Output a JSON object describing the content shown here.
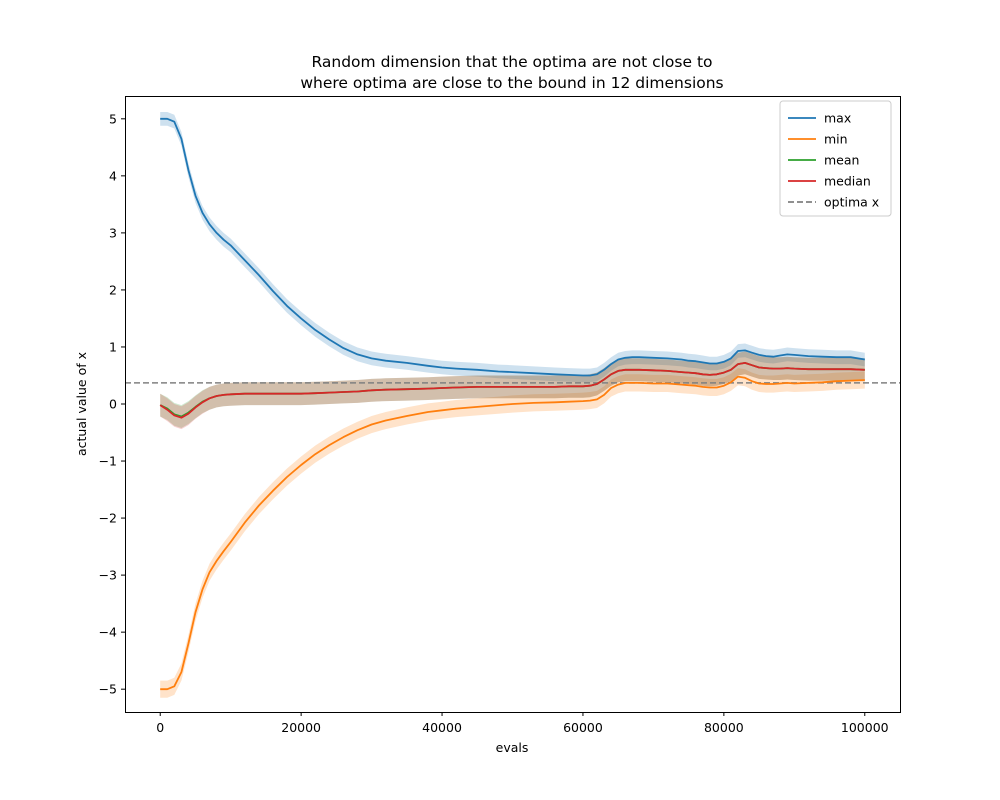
{
  "chart_data": {
    "type": "line",
    "title_lines": [
      "Random dimension that the optima are not close to",
      "where optima are close to the bound in 12 dimensions"
    ],
    "xlabel": "evals",
    "ylabel": "actual value of x",
    "xlim": [
      -5000,
      105000
    ],
    "ylim": [
      -5.4,
      5.4
    ],
    "xticks": [
      0,
      20000,
      40000,
      60000,
      80000,
      100000
    ],
    "xtick_labels": [
      "0",
      "20000",
      "40000",
      "60000",
      "80000",
      "100000"
    ],
    "yticks": [
      -5,
      -4,
      -3,
      -2,
      -1,
      0,
      1,
      2,
      3,
      4,
      5
    ],
    "ytick_labels": [
      "−5",
      "−4",
      "−3",
      "−2",
      "−1",
      "0",
      "1",
      "2",
      "3",
      "4",
      "5"
    ],
    "grid": false,
    "legend_position": "upper right",
    "x": [
      0,
      1000,
      2000,
      3000,
      4000,
      5000,
      6000,
      7000,
      8000,
      9000,
      10000,
      12000,
      14000,
      16000,
      18000,
      20000,
      22000,
      24000,
      26000,
      28000,
      30000,
      32000,
      35000,
      38000,
      40000,
      42000,
      45000,
      48000,
      50000,
      53000,
      56000,
      58000,
      60000,
      61000,
      62000,
      63000,
      64000,
      65000,
      66000,
      67000,
      68000,
      70000,
      72000,
      74000,
      75000,
      76000,
      77000,
      78000,
      79000,
      80000,
      81000,
      82000,
      83000,
      84000,
      85000,
      86000,
      87000,
      88000,
      89000,
      90000,
      92000,
      94000,
      96000,
      98000,
      100000
    ],
    "series": [
      {
        "name": "max",
        "color": "#1f77b4",
        "values": [
          5,
          5,
          4.95,
          4.65,
          4.1,
          3.65,
          3.35,
          3.15,
          3.0,
          2.88,
          2.78,
          2.52,
          2.26,
          1.98,
          1.72,
          1.5,
          1.3,
          1.13,
          0.98,
          0.87,
          0.8,
          0.76,
          0.72,
          0.67,
          0.64,
          0.62,
          0.6,
          0.57,
          0.56,
          0.54,
          0.52,
          0.51,
          0.5,
          0.5,
          0.52,
          0.6,
          0.7,
          0.78,
          0.81,
          0.82,
          0.82,
          0.81,
          0.8,
          0.78,
          0.76,
          0.75,
          0.73,
          0.71,
          0.71,
          0.74,
          0.8,
          0.93,
          0.94,
          0.9,
          0.86,
          0.84,
          0.83,
          0.85,
          0.87,
          0.86,
          0.84,
          0.83,
          0.82,
          0.82,
          0.78
        ],
        "band": 0.12
      },
      {
        "name": "min",
        "color": "#ff7f0e",
        "values": [
          -5,
          -5,
          -4.95,
          -4.7,
          -4.2,
          -3.65,
          -3.25,
          -2.95,
          -2.75,
          -2.58,
          -2.42,
          -2.08,
          -1.78,
          -1.52,
          -1.28,
          -1.07,
          -0.88,
          -0.72,
          -0.58,
          -0.46,
          -0.36,
          -0.29,
          -0.21,
          -0.14,
          -0.11,
          -0.08,
          -0.05,
          -0.02,
          0.0,
          0.02,
          0.03,
          0.04,
          0.05,
          0.06,
          0.08,
          0.16,
          0.28,
          0.34,
          0.37,
          0.37,
          0.37,
          0.36,
          0.36,
          0.34,
          0.33,
          0.32,
          0.3,
          0.29,
          0.29,
          0.32,
          0.38,
          0.48,
          0.46,
          0.4,
          0.36,
          0.35,
          0.35,
          0.36,
          0.37,
          0.36,
          0.37,
          0.38,
          0.4,
          0.41,
          0.42
        ],
        "band": 0.15
      },
      {
        "name": "mean",
        "color": "#2ca02c",
        "values": [
          -0.02,
          -0.08,
          -0.18,
          -0.22,
          -0.15,
          -0.05,
          0.04,
          0.1,
          0.14,
          0.16,
          0.17,
          0.18,
          0.18,
          0.18,
          0.18,
          0.18,
          0.19,
          0.2,
          0.21,
          0.22,
          0.24,
          0.25,
          0.26,
          0.27,
          0.28,
          0.29,
          0.3,
          0.3,
          0.3,
          0.3,
          0.3,
          0.31,
          0.31,
          0.32,
          0.35,
          0.43,
          0.52,
          0.58,
          0.6,
          0.6,
          0.6,
          0.59,
          0.58,
          0.56,
          0.55,
          0.54,
          0.52,
          0.51,
          0.52,
          0.55,
          0.6,
          0.7,
          0.72,
          0.68,
          0.64,
          0.63,
          0.62,
          0.62,
          0.63,
          0.62,
          0.61,
          0.61,
          0.61,
          0.61,
          0.6
        ],
        "band": 0.2
      },
      {
        "name": "median",
        "color": "#d62728",
        "values": [
          -0.02,
          -0.1,
          -0.2,
          -0.24,
          -0.17,
          -0.06,
          0.03,
          0.1,
          0.14,
          0.16,
          0.17,
          0.18,
          0.18,
          0.18,
          0.18,
          0.18,
          0.19,
          0.2,
          0.21,
          0.22,
          0.24,
          0.25,
          0.26,
          0.27,
          0.28,
          0.29,
          0.3,
          0.3,
          0.3,
          0.3,
          0.3,
          0.31,
          0.31,
          0.32,
          0.35,
          0.43,
          0.52,
          0.58,
          0.6,
          0.6,
          0.6,
          0.59,
          0.58,
          0.56,
          0.55,
          0.54,
          0.52,
          0.51,
          0.52,
          0.55,
          0.6,
          0.7,
          0.72,
          0.68,
          0.64,
          0.63,
          0.62,
          0.62,
          0.63,
          0.62,
          0.61,
          0.61,
          0.61,
          0.61,
          0.6
        ],
        "band": 0.2
      }
    ],
    "optima": {
      "name": "optima x",
      "value": 0.37,
      "color": "#808080"
    },
    "legend": [
      {
        "label": "max",
        "color": "#1f77b4",
        "style": "solid"
      },
      {
        "label": "min",
        "color": "#ff7f0e",
        "style": "solid"
      },
      {
        "label": "mean",
        "color": "#2ca02c",
        "style": "solid"
      },
      {
        "label": "median",
        "color": "#d62728",
        "style": "solid"
      },
      {
        "label": "optima x",
        "color": "#808080",
        "style": "dashed"
      }
    ]
  }
}
